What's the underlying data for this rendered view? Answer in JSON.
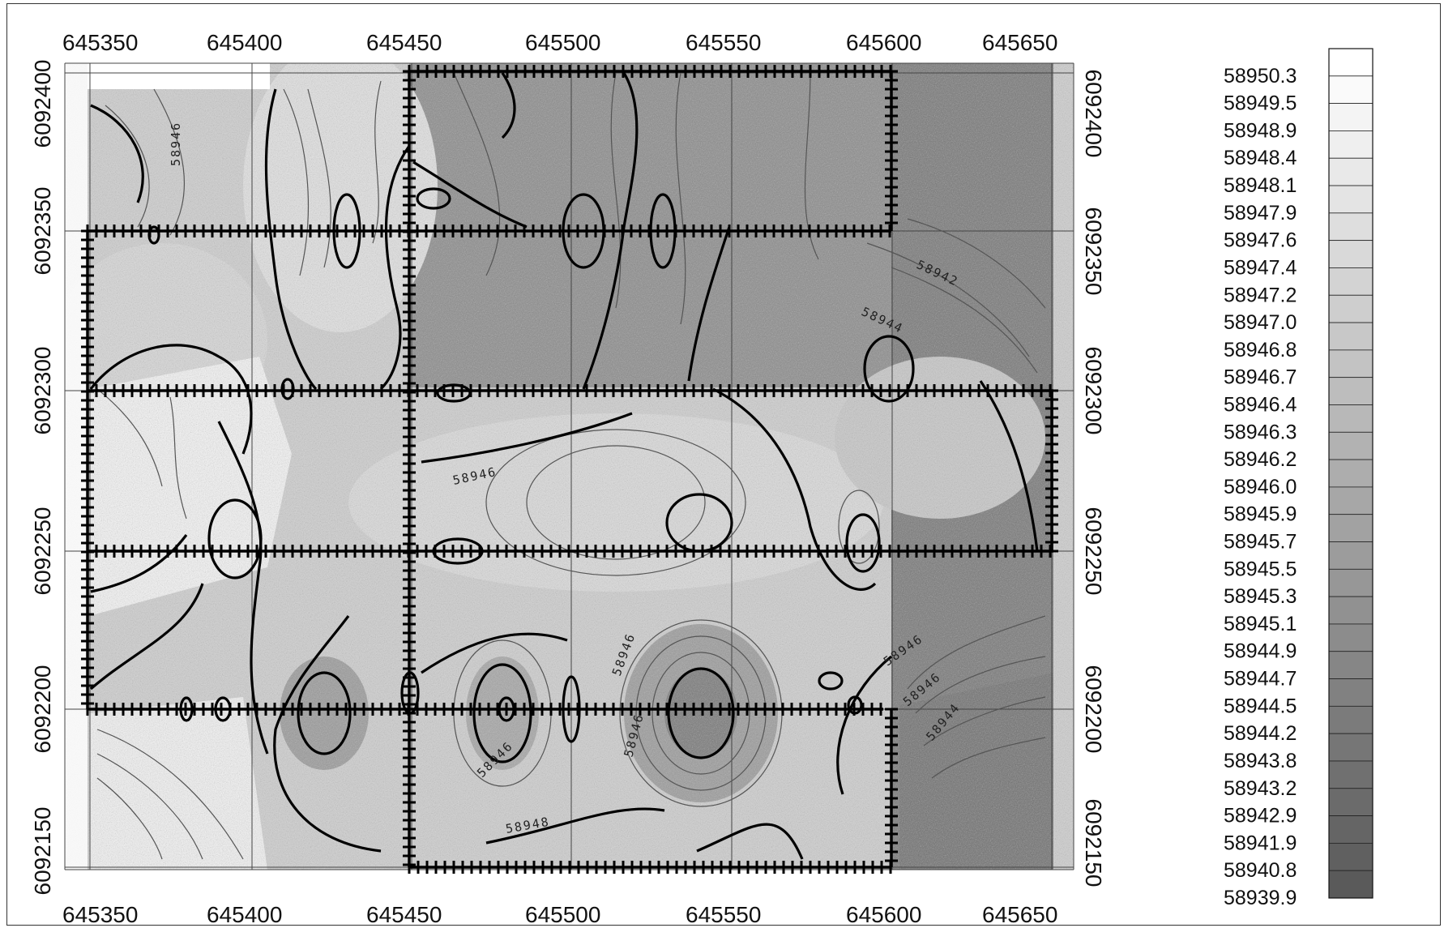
{
  "x_ticks": [
    "645350",
    "645400",
    "645450",
    "645500",
    "645550",
    "645600",
    "645650"
  ],
  "y_ticks": [
    "6092400",
    "6092350",
    "6092300",
    "6092250",
    "6092200",
    "6092150"
  ],
  "legend_values": [
    "58950.3",
    "58949.5",
    "58948.9",
    "58948.4",
    "58948.1",
    "58947.9",
    "58947.6",
    "58947.4",
    "58947.2",
    "58947.0",
    "58946.8",
    "58946.7",
    "58946.4",
    "58946.3",
    "58946.2",
    "58946.0",
    "58945.9",
    "58945.7",
    "58945.5",
    "58945.3",
    "58945.1",
    "58944.9",
    "58944.7",
    "58944.5",
    "58944.2",
    "58943.8",
    "58943.2",
    "58942.9",
    "58941.9",
    "58940.8",
    "58939.9"
  ],
  "contour_labels": [
    "58946",
    "58946",
    "58944",
    "58942",
    "58946",
    "58946",
    "58946",
    "58948",
    "58946",
    "58946",
    "58944"
  ],
  "colors": {
    "low": "#5a5a5a",
    "high": "#ffffff",
    "line": "#000000"
  }
}
